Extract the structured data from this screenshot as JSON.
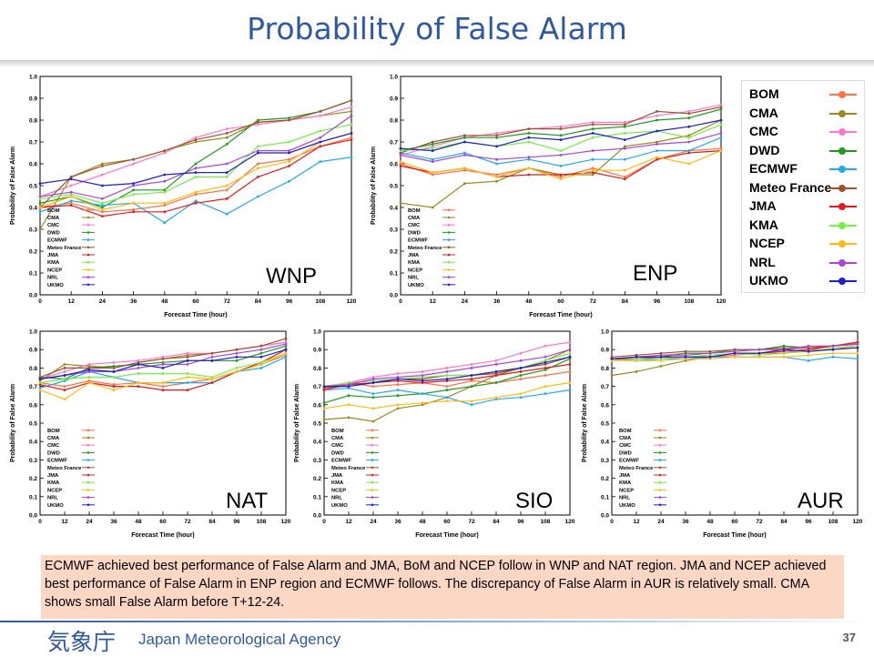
{
  "title": "Probability of False Alarm",
  "note": "ECMWF achieved best performance of False Alarm and JMA, BoM and NCEP follow in WNP and NAT region. JMA and NCEP achieved best performance of False Alarm in ENP region and ECMWF follows. The discrepancy of False Alarm in AUR is relatively small. CMA shows small False Alarm before T+12-24.",
  "footer": {
    "agency_kanji": "気象庁",
    "agency": "Japan Meteorological Agency",
    "page": "37"
  },
  "colors": {
    "BOM": "#ff7043",
    "CMA": "#9a8a1e",
    "CMC": "#ff77cc",
    "DWD": "#1e9a1e",
    "ECMWF": "#22aaee",
    "Meteo France": "#a0522d",
    "JMA": "#e31a1c",
    "KMA": "#77ee44",
    "NCEP": "#ffbb11",
    "NRL": "#aa44dd",
    "UKMO": "#1f1fcc"
  },
  "legend": [
    "BOM",
    "CMA",
    "CMC",
    "DWD",
    "ECMWF",
    "Meteo France",
    "JMA",
    "KMA",
    "NCEP",
    "NRL",
    "UKMO"
  ],
  "chart_data": [
    {
      "type": "line",
      "region": "WNP",
      "xlabel": "Forecast Time (hour)",
      "ylabel": "Probability of False Alarm",
      "x": [
        0,
        12,
        24,
        36,
        48,
        60,
        72,
        84,
        96,
        108,
        120
      ],
      "xlim": [
        0,
        120
      ],
      "ylim": [
        0,
        1.0
      ],
      "yticks": [
        0,
        0.1,
        0.2,
        0.3,
        0.4,
        0.5,
        0.6,
        0.7,
        0.8,
        0.9,
        1.0
      ],
      "series": [
        {
          "name": "BOM",
          "values": [
            0.4,
            0.42,
            0.38,
            0.39,
            0.41,
            0.46,
            0.48,
            0.6,
            0.62,
            0.68,
            0.72
          ]
        },
        {
          "name": "CMA",
          "values": [
            0.3,
            0.54,
            0.6,
            0.62,
            0.66,
            0.7,
            0.72,
            0.79,
            0.8,
            0.82,
            0.84
          ]
        },
        {
          "name": "CMC",
          "values": [
            0.45,
            0.5,
            0.55,
            0.6,
            0.65,
            0.72,
            0.76,
            0.78,
            0.8,
            0.82,
            0.86
          ]
        },
        {
          "name": "DWD",
          "values": [
            0.42,
            0.45,
            0.4,
            0.48,
            0.48,
            0.6,
            0.69,
            0.8,
            0.81,
            0.84,
            0.89
          ]
        },
        {
          "name": "ECMWF",
          "values": [
            0.38,
            0.43,
            0.41,
            0.42,
            0.33,
            0.43,
            0.37,
            0.45,
            0.52,
            0.61,
            0.63
          ]
        },
        {
          "name": "Meteo France",
          "values": [
            0.4,
            0.54,
            0.59,
            0.62,
            0.66,
            0.71,
            0.74,
            0.79,
            0.8,
            0.84,
            0.89
          ]
        },
        {
          "name": "JMA",
          "values": [
            0.4,
            0.41,
            0.36,
            0.38,
            0.38,
            0.42,
            0.44,
            0.54,
            0.59,
            0.68,
            0.71
          ]
        },
        {
          "name": "KMA",
          "values": [
            0.44,
            0.46,
            0.42,
            0.46,
            0.47,
            0.54,
            0.54,
            0.68,
            0.7,
            0.75,
            0.78
          ]
        },
        {
          "name": "NCEP",
          "values": [
            0.4,
            0.45,
            0.39,
            0.42,
            0.42,
            0.47,
            0.5,
            0.58,
            0.61,
            0.7,
            0.74
          ]
        },
        {
          "name": "NRL",
          "values": [
            0.45,
            0.47,
            0.44,
            0.5,
            0.52,
            0.58,
            0.6,
            0.66,
            0.66,
            0.72,
            0.82
          ]
        },
        {
          "name": "UKMO",
          "values": [
            0.51,
            0.53,
            0.5,
            0.51,
            0.55,
            0.56,
            0.56,
            0.65,
            0.65,
            0.7,
            0.74
          ]
        }
      ]
    },
    {
      "type": "line",
      "region": "ENP",
      "xlabel": "Forecast Time (hour)",
      "ylabel": "Probability of False Alarm",
      "x": [
        0,
        12,
        24,
        36,
        48,
        60,
        72,
        84,
        96,
        108,
        120
      ],
      "xlim": [
        0,
        120
      ],
      "ylim": [
        0,
        1.0
      ],
      "yticks": [
        0,
        0.1,
        0.2,
        0.3,
        0.4,
        0.5,
        0.6,
        0.7,
        0.8,
        0.9,
        1.0
      ],
      "series": [
        {
          "name": "BOM",
          "values": [
            0.6,
            0.55,
            0.57,
            0.55,
            0.58,
            0.54,
            0.58,
            0.54,
            0.62,
            0.66,
            0.67
          ]
        },
        {
          "name": "CMA",
          "values": [
            0.42,
            0.4,
            0.51,
            0.52,
            0.58,
            0.55,
            0.55,
            0.68,
            0.7,
            0.73,
            0.8
          ]
        },
        {
          "name": "CMC",
          "values": [
            0.64,
            0.68,
            0.72,
            0.74,
            0.76,
            0.77,
            0.79,
            0.79,
            0.82,
            0.84,
            0.87
          ]
        },
        {
          "name": "DWD",
          "values": [
            0.66,
            0.69,
            0.72,
            0.72,
            0.74,
            0.73,
            0.76,
            0.77,
            0.8,
            0.81,
            0.85
          ]
        },
        {
          "name": "ECMWF",
          "values": [
            0.65,
            0.62,
            0.65,
            0.6,
            0.62,
            0.59,
            0.62,
            0.62,
            0.66,
            0.66,
            0.72
          ]
        },
        {
          "name": "Meteo France",
          "values": [
            0.65,
            0.7,
            0.73,
            0.73,
            0.76,
            0.76,
            0.78,
            0.78,
            0.84,
            0.83,
            0.86
          ]
        },
        {
          "name": "JMA",
          "values": [
            0.59,
            0.56,
            0.58,
            0.54,
            0.55,
            0.55,
            0.56,
            0.53,
            0.62,
            0.65,
            0.66
          ]
        },
        {
          "name": "KMA",
          "values": [
            0.66,
            0.67,
            0.7,
            0.68,
            0.7,
            0.66,
            0.72,
            0.74,
            0.75,
            0.72,
            0.78
          ]
        },
        {
          "name": "NCEP",
          "values": [
            0.61,
            0.56,
            0.58,
            0.54,
            0.58,
            0.53,
            0.57,
            0.57,
            0.63,
            0.6,
            0.66
          ]
        },
        {
          "name": "NRL",
          "values": [
            0.64,
            0.61,
            0.64,
            0.62,
            0.63,
            0.64,
            0.66,
            0.67,
            0.69,
            0.7,
            0.74
          ]
        },
        {
          "name": "UKMO",
          "values": [
            0.67,
            0.66,
            0.7,
            0.68,
            0.72,
            0.71,
            0.74,
            0.71,
            0.75,
            0.77,
            0.8
          ]
        }
      ]
    },
    {
      "type": "line",
      "region": "NAT",
      "xlabel": "Forecast Time (hour)",
      "ylabel": "Probability of False Alarm",
      "x": [
        0,
        12,
        24,
        36,
        48,
        60,
        72,
        84,
        96,
        108,
        120
      ],
      "xlim": [
        0,
        120
      ],
      "ylim": [
        0,
        1.0
      ],
      "yticks": [
        0,
        0.1,
        0.2,
        0.3,
        0.4,
        0.5,
        0.6,
        0.7,
        0.8,
        0.9,
        1.0
      ],
      "series": [
        {
          "name": "BOM",
          "values": [
            0.72,
            0.7,
            0.73,
            0.71,
            0.72,
            0.7,
            0.72,
            0.74,
            0.78,
            0.82,
            0.87
          ]
        },
        {
          "name": "CMA",
          "values": [
            0.73,
            0.82,
            0.81,
            0.8,
            0.83,
            0.85,
            0.87,
            0.88,
            0.9,
            0.92,
            0.94
          ]
        },
        {
          "name": "CMC",
          "values": [
            0.74,
            0.78,
            0.82,
            0.83,
            0.84,
            0.86,
            0.88,
            0.88,
            0.9,
            0.92,
            0.94
          ]
        },
        {
          "name": "DWD",
          "values": [
            0.75,
            0.74,
            0.8,
            0.81,
            0.82,
            0.83,
            0.84,
            0.84,
            0.84,
            0.88,
            0.92
          ]
        },
        {
          "name": "ECMWF",
          "values": [
            0.69,
            0.73,
            0.78,
            0.75,
            0.72,
            0.72,
            0.72,
            0.72,
            0.78,
            0.8,
            0.86
          ]
        },
        {
          "name": "Meteo France",
          "values": [
            0.75,
            0.8,
            0.8,
            0.8,
            0.83,
            0.85,
            0.86,
            0.88,
            0.9,
            0.92,
            0.96
          ]
        },
        {
          "name": "JMA",
          "values": [
            0.71,
            0.68,
            0.72,
            0.7,
            0.7,
            0.68,
            0.68,
            0.72,
            0.78,
            0.83,
            0.9
          ]
        },
        {
          "name": "KMA",
          "values": [
            0.72,
            0.74,
            0.75,
            0.75,
            0.77,
            0.77,
            0.77,
            0.75,
            0.8,
            0.83,
            0.88
          ]
        },
        {
          "name": "NCEP",
          "values": [
            0.68,
            0.63,
            0.72,
            0.68,
            0.72,
            0.72,
            0.75,
            0.74,
            0.78,
            0.82,
            0.88
          ]
        },
        {
          "name": "NRL",
          "values": [
            0.74,
            0.76,
            0.78,
            0.78,
            0.8,
            0.82,
            0.82,
            0.86,
            0.88,
            0.9,
            0.93
          ]
        },
        {
          "name": "UKMO",
          "values": [
            0.74,
            0.76,
            0.79,
            0.78,
            0.82,
            0.8,
            0.84,
            0.84,
            0.86,
            0.86,
            0.9
          ]
        }
      ]
    },
    {
      "type": "line",
      "region": "SIO",
      "xlabel": "Forecast Time (hour)",
      "ylabel": "Probability of False Alarm",
      "x": [
        0,
        12,
        24,
        36,
        48,
        60,
        72,
        84,
        96,
        108,
        120
      ],
      "xlim": [
        0,
        120
      ],
      "ylim": [
        0,
        1.0
      ],
      "yticks": [
        0,
        0.1,
        0.2,
        0.3,
        0.4,
        0.5,
        0.6,
        0.7,
        0.8,
        0.9,
        1.0
      ],
      "series": [
        {
          "name": "BOM",
          "values": [
            0.69,
            0.72,
            0.7,
            0.71,
            0.72,
            0.7,
            0.73,
            0.72,
            0.74,
            0.76,
            0.78
          ]
        },
        {
          "name": "CMA",
          "values": [
            0.52,
            0.53,
            0.51,
            0.58,
            0.6,
            0.64,
            0.7,
            0.76,
            0.8,
            0.84,
            0.9
          ]
        },
        {
          "name": "CMC",
          "values": [
            0.7,
            0.72,
            0.75,
            0.77,
            0.78,
            0.8,
            0.82,
            0.84,
            0.88,
            0.92,
            0.94
          ]
        },
        {
          "name": "DWD",
          "values": [
            0.61,
            0.65,
            0.64,
            0.65,
            0.66,
            0.68,
            0.7,
            0.72,
            0.76,
            0.79,
            0.85
          ]
        },
        {
          "name": "ECMWF",
          "values": [
            0.68,
            0.69,
            0.66,
            0.68,
            0.66,
            0.64,
            0.6,
            0.63,
            0.64,
            0.66,
            0.68
          ]
        },
        {
          "name": "Meteo France",
          "values": [
            0.69,
            0.71,
            0.72,
            0.74,
            0.74,
            0.76,
            0.76,
            0.77,
            0.8,
            0.82,
            0.86
          ]
        },
        {
          "name": "JMA",
          "values": [
            0.68,
            0.71,
            0.72,
            0.73,
            0.72,
            0.73,
            0.74,
            0.76,
            0.78,
            0.8,
            0.82
          ]
        },
        {
          "name": "KMA",
          "values": [
            0.7,
            0.72,
            0.73,
            0.74,
            0.75,
            0.76,
            0.76,
            0.78,
            0.8,
            0.84,
            0.88
          ]
        },
        {
          "name": "NCEP",
          "values": [
            0.58,
            0.6,
            0.58,
            0.6,
            0.61,
            0.62,
            0.62,
            0.64,
            0.66,
            0.7,
            0.72
          ]
        },
        {
          "name": "NRL",
          "values": [
            0.7,
            0.71,
            0.74,
            0.75,
            0.76,
            0.78,
            0.8,
            0.82,
            0.84,
            0.86,
            0.9
          ]
        },
        {
          "name": "UKMO",
          "values": [
            0.7,
            0.7,
            0.72,
            0.74,
            0.73,
            0.74,
            0.76,
            0.78,
            0.8,
            0.83,
            0.86
          ]
        }
      ]
    },
    {
      "type": "line",
      "region": "AUR",
      "xlabel": "Forecast Time (hour)",
      "ylabel": "Probability of False Alarm",
      "x": [
        0,
        12,
        24,
        36,
        48,
        60,
        72,
        84,
        96,
        108,
        120
      ],
      "xlim": [
        0,
        120
      ],
      "ylim": [
        0,
        1.0
      ],
      "yticks": [
        0,
        0.1,
        0.2,
        0.3,
        0.4,
        0.5,
        0.6,
        0.7,
        0.8,
        0.9,
        1.0
      ],
      "series": [
        {
          "name": "BOM",
          "values": [
            0.84,
            0.85,
            0.86,
            0.86,
            0.86,
            0.87,
            0.88,
            0.88,
            0.9,
            0.9,
            0.92
          ]
        },
        {
          "name": "CMA",
          "values": [
            0.76,
            0.78,
            0.81,
            0.84,
            0.86,
            0.88,
            0.88,
            0.9,
            0.91,
            0.92,
            0.94
          ]
        },
        {
          "name": "CMC",
          "values": [
            0.85,
            0.86,
            0.87,
            0.88,
            0.88,
            0.89,
            0.9,
            0.9,
            0.91,
            0.92,
            0.93
          ]
        },
        {
          "name": "DWD",
          "values": [
            0.85,
            0.86,
            0.86,
            0.88,
            0.88,
            0.9,
            0.9,
            0.92,
            0.91,
            0.92,
            0.93
          ]
        },
        {
          "name": "ECMWF",
          "values": [
            0.85,
            0.84,
            0.85,
            0.85,
            0.86,
            0.86,
            0.86,
            0.86,
            0.84,
            0.86,
            0.85
          ]
        },
        {
          "name": "Meteo France",
          "values": [
            0.86,
            0.87,
            0.88,
            0.89,
            0.89,
            0.9,
            0.9,
            0.91,
            0.91,
            0.92,
            0.93
          ]
        },
        {
          "name": "JMA",
          "values": [
            0.85,
            0.85,
            0.86,
            0.86,
            0.86,
            0.88,
            0.88,
            0.89,
            0.9,
            0.92,
            0.94
          ]
        },
        {
          "name": "KMA",
          "values": [
            0.84,
            0.85,
            0.85,
            0.86,
            0.87,
            0.88,
            0.87,
            0.88,
            0.89,
            0.91,
            0.92
          ]
        },
        {
          "name": "NCEP",
          "values": [
            0.84,
            0.84,
            0.84,
            0.85,
            0.85,
            0.86,
            0.86,
            0.86,
            0.87,
            0.88,
            0.88
          ]
        },
        {
          "name": "NRL",
          "values": [
            0.85,
            0.86,
            0.87,
            0.87,
            0.88,
            0.89,
            0.9,
            0.9,
            0.92,
            0.92,
            0.93
          ]
        },
        {
          "name": "UKMO",
          "values": [
            0.85,
            0.86,
            0.86,
            0.86,
            0.86,
            0.88,
            0.88,
            0.9,
            0.89,
            0.9,
            0.91
          ]
        }
      ]
    }
  ]
}
